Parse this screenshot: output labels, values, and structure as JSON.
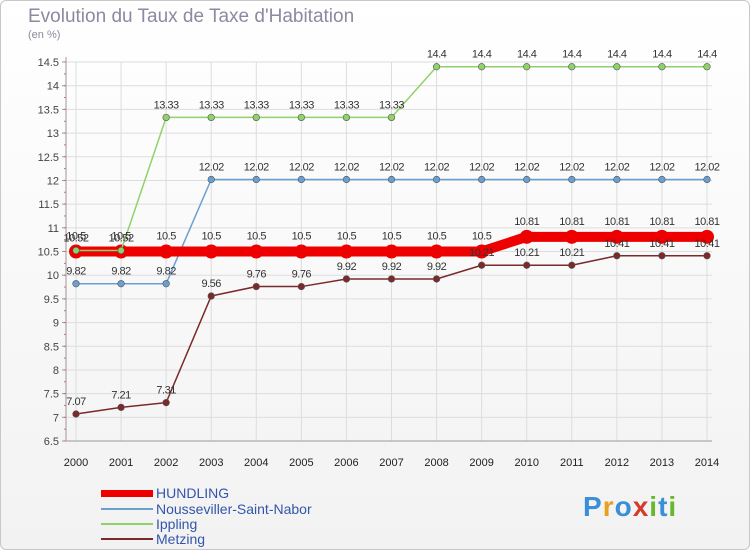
{
  "title": "Evolution du Taux de Taxe d'Habitation",
  "unit": "(en %)",
  "logo": {
    "letters": [
      "P",
      "r",
      "o",
      "x",
      "i",
      "t",
      "i"
    ],
    "colors": [
      "#3a8fd6",
      "#e8a11f",
      "#3a8fd6",
      "#d63a2a",
      "#67b82d",
      "#3a8fd6",
      "#67b82d"
    ]
  },
  "chart_data": {
    "type": "line",
    "x": [
      2000,
      2001,
      2002,
      2003,
      2004,
      2005,
      2006,
      2007,
      2008,
      2009,
      2010,
      2011,
      2012,
      2013,
      2014
    ],
    "ylim": [
      6.5,
      14.5
    ],
    "yticks": [
      6.5,
      7,
      7.5,
      8,
      8.5,
      9,
      9.5,
      10,
      10.5,
      11,
      11.5,
      12,
      12.5,
      13,
      13.5,
      14,
      14.5
    ],
    "grid": true,
    "legend_position": "bottom-left",
    "series": [
      {
        "name": "HUNDLING",
        "color": "#ee0000",
        "values": [
          10.5,
          10.5,
          10.5,
          10.5,
          10.5,
          10.5,
          10.5,
          10.5,
          10.5,
          10.5,
          10.81,
          10.81,
          10.81,
          10.81,
          10.81
        ],
        "labels": [
          "10.5",
          "10.5",
          "10.5",
          "10.5",
          "10.5",
          "10.5",
          "10.5",
          "10.5",
          "10.5",
          "10.5",
          "10.81",
          "10.81",
          "10.81",
          "10.81",
          "10.81"
        ]
      },
      {
        "name": "Nousseviller-Saint-Nabor",
        "color": "#6a9fd0",
        "values": [
          9.82,
          9.82,
          9.82,
          12.02,
          12.02,
          12.02,
          12.02,
          12.02,
          12.02,
          12.02,
          12.02,
          12.02,
          12.02,
          12.02,
          12.02
        ],
        "labels": [
          "9.82",
          "9.82",
          "9.82",
          "12.02",
          "12.02",
          "12.02",
          "12.02",
          "12.02",
          "12.02",
          "12.02",
          "12.02",
          "12.02",
          "12.02",
          "12.02",
          "12.02"
        ]
      },
      {
        "name": "Ippling",
        "color": "#8fd16a",
        "values": [
          10.52,
          10.52,
          13.33,
          13.33,
          13.33,
          13.33,
          13.33,
          13.33,
          14.4,
          14.4,
          14.4,
          14.4,
          14.4,
          14.4,
          14.4
        ],
        "labels": [
          "10.52",
          "10.52",
          "13.33",
          "13.33",
          "13.33",
          "13.33",
          "13.33",
          "13.33",
          "14.4",
          "14.4",
          "14.4",
          "14.4",
          "14.4",
          "14.4",
          "14.4"
        ]
      },
      {
        "name": "Metzing",
        "color": "#7a2a2a",
        "values": [
          7.07,
          7.21,
          7.31,
          9.56,
          9.76,
          9.76,
          9.92,
          9.92,
          9.92,
          10.21,
          10.21,
          10.21,
          10.41,
          10.41,
          10.41
        ],
        "labels": [
          "7.07",
          "7.21",
          "7.31",
          "9.56",
          "9.76",
          "9.76",
          "9.92",
          "9.92",
          "9.92",
          "10.21",
          "10.21",
          "10.21",
          "10.41",
          "10.41",
          "10.41"
        ]
      }
    ]
  }
}
